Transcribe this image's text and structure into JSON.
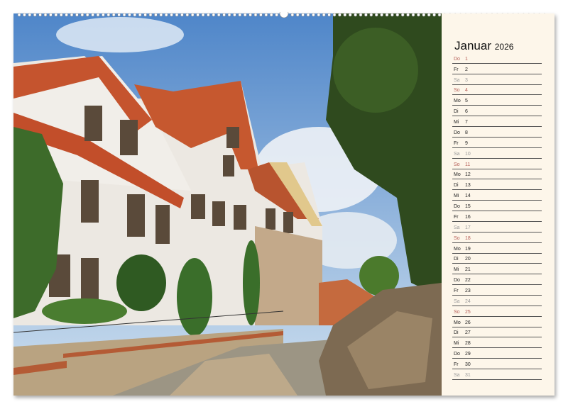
{
  "calendar": {
    "month": "Januar",
    "year": "2026",
    "colors": {
      "weekday": "#222222",
      "saturday": "#9a9a9a",
      "sunday_holiday": "#b45c55",
      "paper": "#fdf6ea"
    },
    "days": [
      {
        "wd": "Do",
        "d": "1",
        "type": "holiday"
      },
      {
        "wd": "Fr",
        "d": "2",
        "type": "weekday"
      },
      {
        "wd": "Sa",
        "d": "3",
        "type": "saturday"
      },
      {
        "wd": "So",
        "d": "4",
        "type": "sunday"
      },
      {
        "wd": "Mo",
        "d": "5",
        "type": "weekday"
      },
      {
        "wd": "Di",
        "d": "6",
        "type": "weekday"
      },
      {
        "wd": "Mi",
        "d": "7",
        "type": "weekday"
      },
      {
        "wd": "Do",
        "d": "8",
        "type": "weekday"
      },
      {
        "wd": "Fr",
        "d": "9",
        "type": "weekday"
      },
      {
        "wd": "Sa",
        "d": "10",
        "type": "saturday"
      },
      {
        "wd": "So",
        "d": "11",
        "type": "sunday"
      },
      {
        "wd": "Mo",
        "d": "12",
        "type": "weekday"
      },
      {
        "wd": "Di",
        "d": "13",
        "type": "weekday"
      },
      {
        "wd": "Mi",
        "d": "14",
        "type": "weekday"
      },
      {
        "wd": "Do",
        "d": "15",
        "type": "weekday"
      },
      {
        "wd": "Fr",
        "d": "16",
        "type": "weekday"
      },
      {
        "wd": "Sa",
        "d": "17",
        "type": "saturday"
      },
      {
        "wd": "So",
        "d": "18",
        "type": "sunday"
      },
      {
        "wd": "Mo",
        "d": "19",
        "type": "weekday"
      },
      {
        "wd": "Di",
        "d": "20",
        "type": "weekday"
      },
      {
        "wd": "Mi",
        "d": "21",
        "type": "weekday"
      },
      {
        "wd": "Do",
        "d": "22",
        "type": "weekday"
      },
      {
        "wd": "Fr",
        "d": "23",
        "type": "weekday"
      },
      {
        "wd": "Sa",
        "d": "24",
        "type": "saturday"
      },
      {
        "wd": "So",
        "d": "25",
        "type": "sunday"
      },
      {
        "wd": "Mo",
        "d": "26",
        "type": "weekday"
      },
      {
        "wd": "Di",
        "d": "27",
        "type": "weekday"
      },
      {
        "wd": "Mi",
        "d": "28",
        "type": "weekday"
      },
      {
        "wd": "Do",
        "d": "29",
        "type": "weekday"
      },
      {
        "wd": "Fr",
        "d": "30",
        "type": "weekday"
      },
      {
        "wd": "Sa",
        "d": "31",
        "type": "saturday"
      }
    ]
  },
  "photo": {
    "subject": "half-timbered-houses-street"
  }
}
